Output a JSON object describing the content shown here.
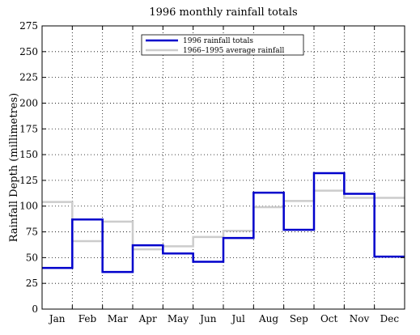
{
  "chart_data": {
    "type": "line",
    "step": true,
    "title": "1996 monthly rainfall totals",
    "xlabel": "",
    "ylabel": "Rainfall Depth (millimetres)",
    "categories": [
      "Jan",
      "Feb",
      "Mar",
      "Apr",
      "May",
      "Jun",
      "Jul",
      "Aug",
      "Sep",
      "Oct",
      "Nov",
      "Dec"
    ],
    "ylim": [
      0,
      275
    ],
    "yticks": [
      0,
      25,
      50,
      75,
      100,
      125,
      150,
      175,
      200,
      225,
      250,
      275
    ],
    "grid": true,
    "grid_style": "dotted",
    "legend_position": "top-center",
    "series": [
      {
        "name": "1996 rainfall totals",
        "color": "#0000cc",
        "values": [
          40,
          87,
          36,
          62,
          54,
          46,
          69,
          113,
          77,
          132,
          112,
          51
        ]
      },
      {
        "name": "1966–1995 average rainfall",
        "color": "#cccccc",
        "values": [
          104,
          66,
          85,
          58,
          61,
          70,
          76,
          99,
          105,
          115,
          108,
          108
        ]
      }
    ]
  }
}
